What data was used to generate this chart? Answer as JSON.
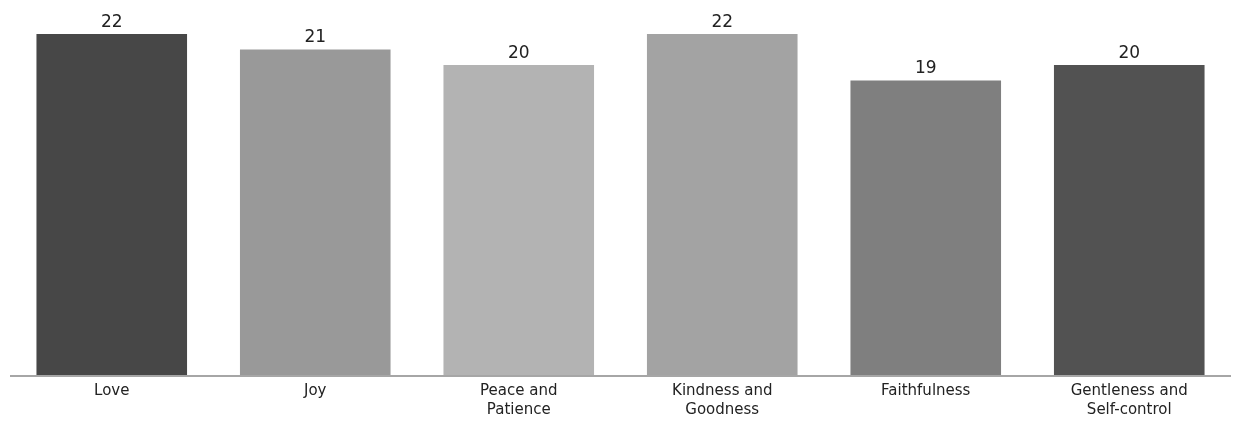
{
  "chart_data": {
    "type": "bar",
    "categories": [
      "Love",
      "Joy",
      "Peace and Patience",
      "Kindness and Goodness",
      "Faithfulness",
      "Gentleness and Self-control"
    ],
    "values": [
      22,
      21,
      20,
      22,
      19,
      20
    ],
    "colors": [
      "#474747",
      "#999999",
      "#b3b3b3",
      "#a3a3a3",
      "#7f7f7f",
      "#525252"
    ],
    "data_labels": true
  }
}
